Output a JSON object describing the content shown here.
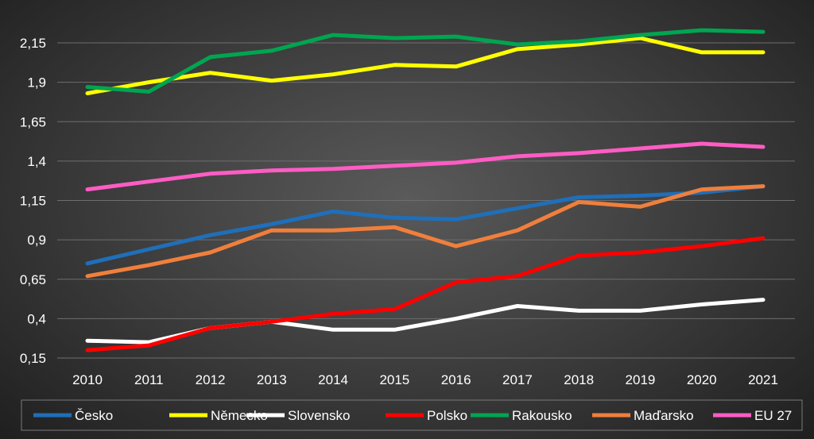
{
  "chart_data": {
    "type": "line",
    "title": "",
    "xlabel": "",
    "ylabel": "",
    "categories": [
      "2010",
      "2011",
      "2012",
      "2013",
      "2014",
      "2015",
      "2016",
      "2017",
      "2018",
      "2019",
      "2020",
      "2021"
    ],
    "y_ticks": [
      "0,15",
      "0,4",
      "0,65",
      "0,9",
      "1,15",
      "1,4",
      "1,65",
      "1,9",
      "2,15"
    ],
    "ylim": [
      0.15,
      2.15
    ],
    "grid": true,
    "legend_position": "bottom",
    "series": [
      {
        "name": "Česko",
        "color": "#1f6fba",
        "values": [
          0.75,
          0.84,
          0.93,
          1.0,
          1.08,
          1.04,
          1.03,
          1.1,
          1.17,
          1.18,
          1.2,
          1.24
        ]
      },
      {
        "name": "Německo",
        "color": "#ffff00",
        "values": [
          1.83,
          1.9,
          1.96,
          1.91,
          1.95,
          2.01,
          2.0,
          2.11,
          2.14,
          2.18,
          2.09,
          2.09
        ]
      },
      {
        "name": "Slovensko",
        "color": "#ffffff",
        "values": [
          0.26,
          0.25,
          0.34,
          0.38,
          0.33,
          0.33,
          0.4,
          0.48,
          0.45,
          0.45,
          0.49,
          0.52
        ]
      },
      {
        "name": "Polsko",
        "color": "#ff0000",
        "values": [
          0.2,
          0.23,
          0.34,
          0.38,
          0.43,
          0.46,
          0.63,
          0.67,
          0.8,
          0.82,
          0.86,
          0.91
        ]
      },
      {
        "name": "Rakousko",
        "color": "#00a550",
        "values": [
          1.87,
          1.84,
          2.06,
          2.1,
          2.2,
          2.18,
          2.19,
          2.14,
          2.16,
          2.2,
          2.23,
          2.22
        ]
      },
      {
        "name": "Maďarsko",
        "color": "#f07f3c",
        "values": [
          0.67,
          0.74,
          0.82,
          0.96,
          0.96,
          0.98,
          0.86,
          0.96,
          1.14,
          1.11,
          1.22,
          1.24
        ]
      },
      {
        "name": "EU 27",
        "color": "#ff5cc4",
        "values": [
          1.22,
          1.27,
          1.32,
          1.34,
          1.35,
          1.37,
          1.39,
          1.43,
          1.45,
          1.48,
          1.51,
          1.49
        ]
      }
    ]
  }
}
